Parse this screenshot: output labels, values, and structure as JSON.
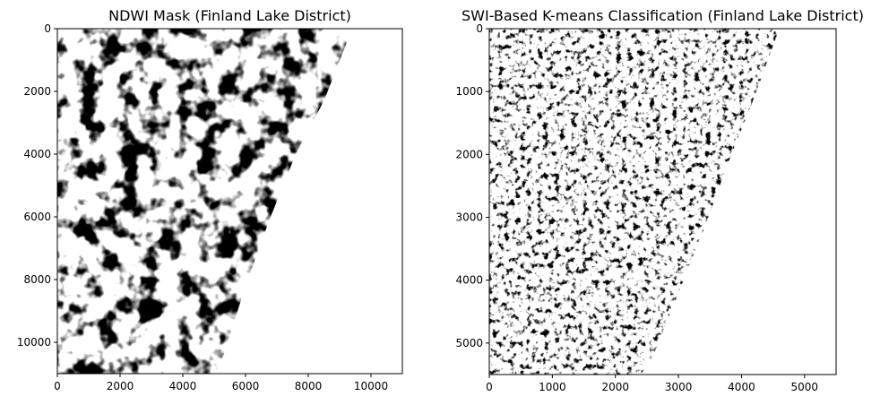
{
  "chart_data": [
    {
      "type": "heatmap",
      "title": "NDWI Mask (Finland Lake District)",
      "xlabel": "",
      "ylabel": "",
      "xlim": [
        0,
        11000
      ],
      "ylim": [
        11000,
        0
      ],
      "x_ticks": [
        0,
        2000,
        4000,
        6000,
        8000,
        10000
      ],
      "y_ticks": [
        0,
        2000,
        4000,
        6000,
        8000,
        10000
      ],
      "colormap": [
        "#ffffff",
        "#000000"
      ],
      "grid": false,
      "legend": "none",
      "valid_extent": [
        [
          0,
          0
        ],
        [
          9400,
          0
        ],
        [
          8500,
          2300
        ],
        [
          7600,
          4000
        ],
        [
          6800,
          6000
        ],
        [
          6000,
          8200
        ],
        [
          5300,
          10400
        ],
        [
          5000,
          11000
        ],
        [
          0,
          11000
        ]
      ]
    },
    {
      "type": "heatmap",
      "title": "SWI-Based K-means Classification (Finland Lake District)",
      "xlabel": "",
      "ylabel": "",
      "xlim": [
        0,
        5500
      ],
      "ylim": [
        5500,
        0
      ],
      "x_ticks": [
        0,
        1000,
        2000,
        3000,
        4000,
        5000
      ],
      "y_ticks": [
        0,
        1000,
        2000,
        3000,
        4000,
        5000
      ],
      "colormap": [
        "#ffffff",
        "#000000"
      ],
      "grid": false,
      "legend": "none",
      "valid_extent": [
        [
          0,
          0
        ],
        [
          4600,
          0
        ],
        [
          4200,
          1100
        ],
        [
          3800,
          2100
        ],
        [
          3400,
          3200
        ],
        [
          3000,
          4200
        ],
        [
          2600,
          5200
        ],
        [
          2400,
          5500
        ],
        [
          0,
          5500
        ]
      ]
    }
  ]
}
